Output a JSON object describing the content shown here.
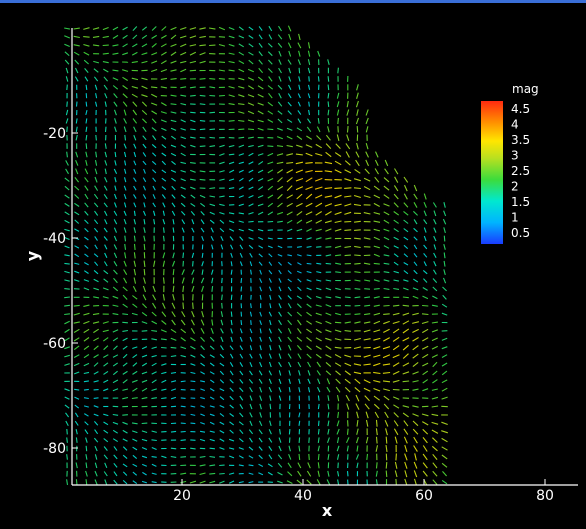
{
  "chart_data": {
    "type": "vector_field",
    "title": "",
    "xlabel": "x",
    "ylabel": "y",
    "xlim": [
      0,
      85
    ],
    "ylim": [
      -87,
      2
    ],
    "xticks": [
      20,
      40,
      60,
      80
    ],
    "yticks": [
      -20,
      -40,
      -60,
      -80
    ],
    "legend": {
      "title": "mag",
      "position": "top-right",
      "levels": [
        "4.5",
        "4",
        "3.5",
        "3",
        "2.5",
        "2",
        "1.5",
        "1",
        "0.5"
      ],
      "range": [
        0.5,
        4.5
      ]
    },
    "domain_polygon": [
      [
        0.5,
        0.5
      ],
      [
        38,
        0.5
      ],
      [
        50,
        -12
      ],
      [
        51.5,
        -22
      ],
      [
        60,
        -32
      ],
      [
        64.5,
        -34
      ],
      [
        64.5,
        -87
      ],
      [
        0.5,
        -87
      ]
    ],
    "field_regions": [
      {
        "x": 45,
        "y": -30,
        "mag": 4.3,
        "radius": 8
      },
      {
        "x": 52,
        "y": -62,
        "mag": 4.2,
        "radius": 7
      },
      {
        "x": 58,
        "y": -78,
        "mag": 3.9,
        "radius": 7
      },
      {
        "x": 33,
        "y": -45,
        "mag": 0.7,
        "radius": 7
      },
      {
        "x": 15,
        "y": -30,
        "mag": 1.4,
        "radius": 9
      },
      {
        "x": 25,
        "y": -70,
        "mag": 1.2,
        "radius": 10
      },
      {
        "x": 8,
        "y": -82,
        "mag": 1.6,
        "radius": 6
      },
      {
        "x": 18,
        "y": -52,
        "mag": 3.0,
        "radius": 7
      },
      {
        "x": 20,
        "y": -5,
        "mag": 2.8,
        "radius": 10
      }
    ]
  }
}
